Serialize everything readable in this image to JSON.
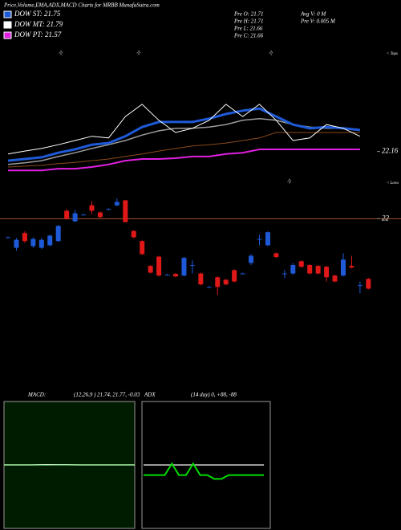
{
  "title": "Price,Volume,EMA,ADX,MACD Charts for MRBB MunafaSutra.com",
  "legend": [
    {
      "label": "DOW ST: 21.75",
      "color": "#1e5ad8"
    },
    {
      "label": "DOW MT: 21.79",
      "color": "#ffffff"
    },
    {
      "label": "DOW PT: 21.57",
      "color": "#e020e0"
    }
  ],
  "info": [
    "Pre   O: 21.71",
    "Pre   H: 21.71",
    "Pre   L: 21.66",
    "Pre   C: 21.66"
  ],
  "info2": [
    "Avg V: 0  M",
    "Pre   V: 0.005 M"
  ],
  "tops_label": "< Tops",
  "lows_label": "< Lows",
  "top_marks": [
    "22",
    "22",
    "22"
  ],
  "low_marks": [
    "22"
  ],
  "chart_data": [
    {
      "type": "candlestick",
      "open": [
        21.956,
        21.931,
        21.966,
        21.935,
        21.931,
        21.937,
        21.947,
        22.019,
        21.994,
        22.01,
        22.032,
        22.015,
        22.023,
        22.032,
        22.044,
        21.971,
        21.947,
        21.888,
        21.91,
        21.867,
        21.869,
        21.865,
        21.89,
        21.87,
        21.838,
        21.861,
        21.855,
        21.878,
        21.87,
        21.895,
        21.952,
        21.937,
        21.918,
        21.87,
        21.87,
        21.899,
        21.89,
        21.888,
        21.886,
        21.865,
        21.865,
        21.888,
        21.842,
        21.857
      ],
      "high": [
        21.958,
        21.954,
        21.97,
        21.956,
        21.954,
        21.962,
        21.985,
        22.023,
        22.021,
        22.011,
        22.042,
        22.017,
        22.025,
        22.048,
        22.044,
        21.973,
        21.949,
        21.89,
        21.912,
        21.869,
        21.871,
        21.909,
        21.901,
        21.872,
        21.84,
        21.863,
        21.857,
        21.88,
        21.872,
        21.916,
        21.962,
        21.97,
        21.92,
        21.878,
        21.895,
        21.901,
        21.892,
        21.89,
        21.888,
        21.867,
        21.918,
        21.912,
        21.851,
        21.859
      ],
      "low": [
        21.954,
        21.924,
        21.943,
        21.931,
        21.928,
        21.935,
        21.945,
        21.998,
        21.992,
        22.008,
        22.011,
        22.002,
        22.021,
        22.03,
        21.992,
        21.954,
        21.914,
        21.87,
        21.863,
        21.865,
        21.861,
        21.863,
        21.87,
        21.842,
        21.836,
        21.819,
        21.842,
        21.849,
        21.868,
        21.89,
        21.937,
        21.935,
        21.907,
        21.859,
        21.867,
        21.884,
        21.868,
        21.868,
        21.851,
        21.849,
        21.863,
        21.882,
        21.823,
        21.832
      ],
      "close": [
        21.956,
        21.95,
        21.947,
        21.952,
        21.95,
        21.96,
        21.983,
        22.0,
        22.013,
        22.01,
        22.019,
        22.004,
        22.023,
        22.04,
        21.992,
        21.956,
        21.916,
        21.872,
        21.865,
        21.867,
        21.863,
        21.907,
        21.89,
        21.844,
        21.838,
        21.838,
        21.844,
        21.851,
        21.87,
        21.912,
        21.952,
        21.968,
        21.909,
        21.87,
        21.89,
        21.886,
        21.87,
        21.87,
        21.861,
        21.851,
        21.903,
        21.884,
        21.842,
        21.834
      ],
      "up_color": "#1e5ad8",
      "down_color": "#e01818",
      "ylim": [
        21.6,
        22.52
      ],
      "yticks": [
        22,
        22.16
      ],
      "reference_line": {
        "value": 22,
        "color": "#a0522d"
      },
      "line_x": [
        0,
        2,
        4,
        6,
        8,
        10,
        12,
        14,
        16,
        18,
        20,
        22,
        24,
        26,
        28,
        30,
        32,
        34,
        36,
        38,
        40,
        42
      ],
      "series": [
        {
          "color": "#8b4a1a",
          "width": 1,
          "values": [
            22.123,
            22.125,
            22.127,
            22.131,
            22.134,
            22.138,
            22.142,
            22.148,
            22.154,
            22.161,
            22.167,
            22.173,
            22.176,
            22.18,
            22.186,
            22.192,
            22.205,
            22.205,
            22.205,
            22.205,
            22.205,
            22.205
          ]
        },
        {
          "color": "#e020e0",
          "width": 2,
          "values": [
            22.115,
            22.115,
            22.115,
            22.119,
            22.119,
            22.123,
            22.129,
            22.138,
            22.142,
            22.142,
            22.144,
            22.148,
            22.148,
            22.154,
            22.157,
            22.165,
            22.165,
            22.165,
            22.165,
            22.165,
            22.165,
            22.165
          ]
        },
        {
          "color": "#9a9a9a",
          "width": 1.5,
          "values": [
            22.129,
            22.133,
            22.138,
            22.148,
            22.157,
            22.167,
            22.176,
            22.186,
            22.199,
            22.209,
            22.215,
            22.215,
            22.218,
            22.224,
            22.234,
            22.238,
            22.234,
            22.224,
            22.218,
            22.215,
            22.215,
            22.211
          ]
        },
        {
          "color": "#1e5ad8",
          "width": 3,
          "values": [
            22.138,
            22.142,
            22.146,
            22.157,
            22.165,
            22.176,
            22.18,
            22.196,
            22.218,
            22.23,
            22.23,
            22.23,
            22.238,
            22.249,
            22.257,
            22.262,
            22.243,
            22.224,
            22.215,
            22.218,
            22.215,
            22.211
          ]
        },
        {
          "color": "#ffffff",
          "width": 1,
          "values": [
            22.154,
            22.161,
            22.167,
            22.176,
            22.186,
            22.196,
            22.192,
            22.243,
            22.272,
            22.234,
            22.205,
            22.215,
            22.234,
            22.272,
            22.243,
            22.272,
            22.234,
            22.186,
            22.192,
            22.224,
            22.215,
            22.196
          ]
        }
      ]
    },
    {
      "type": "line",
      "label": "MACD:",
      "params": "(12,26,9 ) 21.74, 21.77, -0.03",
      "ylim": [
        0,
        43.5
      ],
      "background": "#001c00",
      "series": [
        {
          "color": "#00cc00",
          "width": 1.5,
          "values": [
            21.77,
            21.77,
            21.77,
            21.77,
            21.78,
            21.79,
            21.8,
            21.8,
            21.79,
            21.78,
            21.77,
            21.77,
            21.77,
            21.77,
            21.77,
            21.77
          ]
        },
        {
          "color": "#ffffff",
          "width": 1,
          "values": [
            21.74,
            21.74,
            21.75,
            21.76,
            21.8,
            21.85,
            21.84,
            21.8,
            21.78,
            21.76,
            21.75,
            21.74,
            21.74,
            21.74,
            21.74,
            21.74
          ]
        }
      ]
    },
    {
      "type": "line",
      "label": "ADX",
      "params": "(14 day) 0, +88, -88",
      "ylim": [
        0,
        100
      ],
      "background": "#000000",
      "series": [
        {
          "color": "#9a9a9a",
          "width": 2,
          "values": [
            50,
            50,
            50,
            50,
            50,
            50,
            50,
            50,
            50,
            50,
            50,
            50,
            50,
            50,
            50,
            50,
            50,
            50
          ]
        },
        {
          "color": "#00dd00",
          "width": 2,
          "values": [
            42,
            42,
            42,
            42,
            51,
            42,
            42,
            51,
            42,
            42,
            39,
            39,
            42,
            42,
            42,
            42,
            42,
            42
          ]
        }
      ]
    }
  ]
}
